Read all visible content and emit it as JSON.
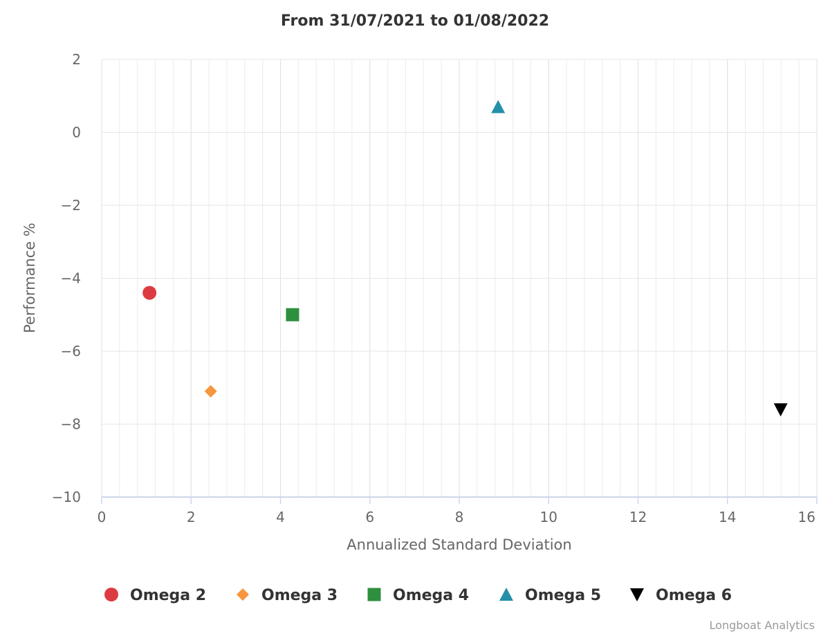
{
  "chart_data": {
    "type": "scatter",
    "title": "From 31/07/2021 to 01/08/2022",
    "xlabel": "Annualized Standard Deviation",
    "ylabel": "Performance %",
    "xlim": [
      0,
      16
    ],
    "ylim": [
      -10,
      2
    ],
    "x_ticks": [
      0,
      2,
      4,
      6,
      8,
      10,
      12,
      14,
      16
    ],
    "y_ticks": [
      2,
      0,
      -2,
      -4,
      -6,
      -8,
      -10
    ],
    "x_tick_labels": [
      "0",
      "2",
      "4",
      "6",
      "8",
      "10",
      "12",
      "14",
      "16"
    ],
    "y_tick_labels": [
      "2",
      "0",
      "−2",
      "−4",
      "−6",
      "−8",
      "−10"
    ],
    "grid": true,
    "legend_position": "bottom",
    "series": [
      {
        "name": "Omega 2",
        "marker": "circle",
        "color": "#dc3c41",
        "points": [
          {
            "x": 1.07,
            "y": -4.4
          }
        ]
      },
      {
        "name": "Omega 3",
        "marker": "diamond",
        "color": "#f7963c",
        "points": [
          {
            "x": 2.44,
            "y": -7.1
          }
        ]
      },
      {
        "name": "Omega 4",
        "marker": "square",
        "color": "#2e8f3e",
        "points": [
          {
            "x": 4.27,
            "y": -5.0
          }
        ]
      },
      {
        "name": "Omega 5",
        "marker": "triangle",
        "color": "#2390a8",
        "points": [
          {
            "x": 8.87,
            "y": 0.7
          }
        ]
      },
      {
        "name": "Omega 6",
        "marker": "triangle-down",
        "color": "#000000",
        "points": [
          {
            "x": 15.19,
            "y": -7.6
          }
        ]
      }
    ]
  },
  "credit": "Longboat Analytics"
}
